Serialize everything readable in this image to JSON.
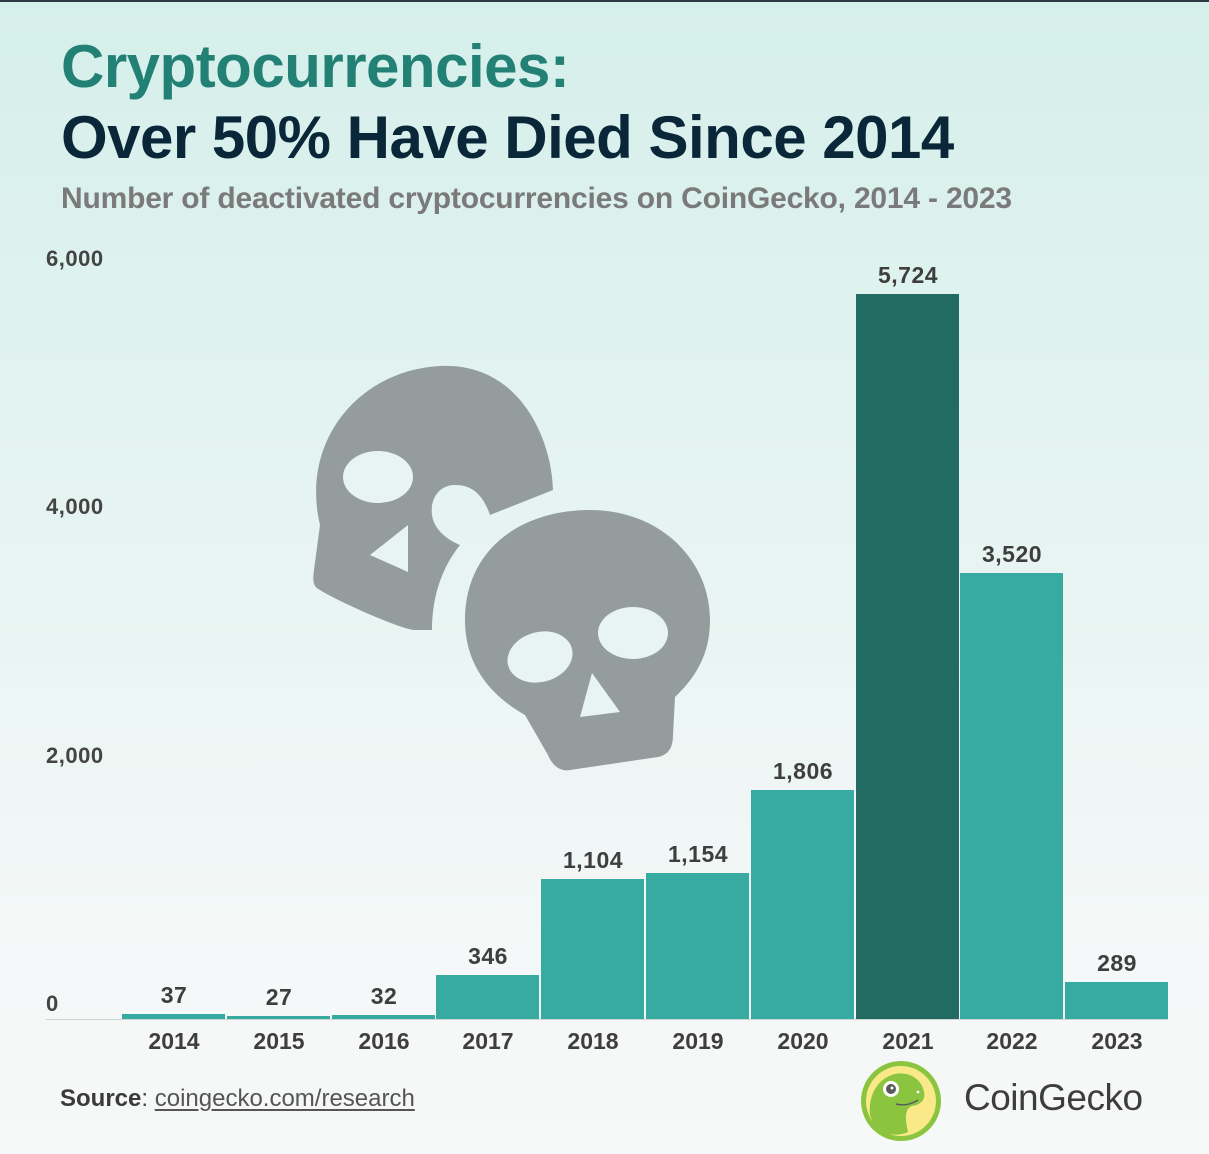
{
  "header": {
    "title_line1": "Cryptocurrencies:",
    "title_line2": "Over 50% Have Died Since 2014",
    "subtitle": "Number of deactivated cryptocurrencies on CoinGecko, 2014 - 2023"
  },
  "axis": {
    "y_ticks": [
      "6,000",
      "4,000",
      "2,000",
      "0"
    ]
  },
  "bars": [
    {
      "year": "2014",
      "label": "37"
    },
    {
      "year": "2015",
      "label": "27"
    },
    {
      "year": "2016",
      "label": "32"
    },
    {
      "year": "2017",
      "label": "346"
    },
    {
      "year": "2018",
      "label": "1,104"
    },
    {
      "year": "2019",
      "label": "1,154"
    },
    {
      "year": "2020",
      "label": "1,806"
    },
    {
      "year": "2021",
      "label": "5,724"
    },
    {
      "year": "2022",
      "label": "3,520"
    },
    {
      "year": "2023",
      "label": "289"
    }
  ],
  "footer": {
    "source_label": "Source",
    "source_sep": ": ",
    "source_link": "coingecko.com/research",
    "brand": "CoinGecko"
  },
  "colors": {
    "bar": "#37aaa1",
    "bar_highlight": "#216b63",
    "title_accent": "#228074",
    "title_dark": "#0a273a",
    "skull": "#949d9b"
  },
  "chart_data": {
    "type": "bar",
    "title": "Cryptocurrencies: Over 50% Have Died Since 2014",
    "subtitle": "Number of deactivated cryptocurrencies on CoinGecko, 2014 - 2023",
    "categories": [
      "2014",
      "2015",
      "2016",
      "2017",
      "2018",
      "2019",
      "2020",
      "2021",
      "2022",
      "2023"
    ],
    "values": [
      37,
      27,
      32,
      346,
      1104,
      1154,
      1806,
      5724,
      3520,
      289
    ],
    "highlight": "2021",
    "xlabel": "",
    "ylabel": "",
    "ylim": [
      0,
      6000
    ],
    "y_ticks": [
      0,
      2000,
      4000,
      6000
    ],
    "grid": false,
    "data_labels": true,
    "annotations": [
      "Source: coingecko.com/research",
      "CoinGecko"
    ]
  }
}
